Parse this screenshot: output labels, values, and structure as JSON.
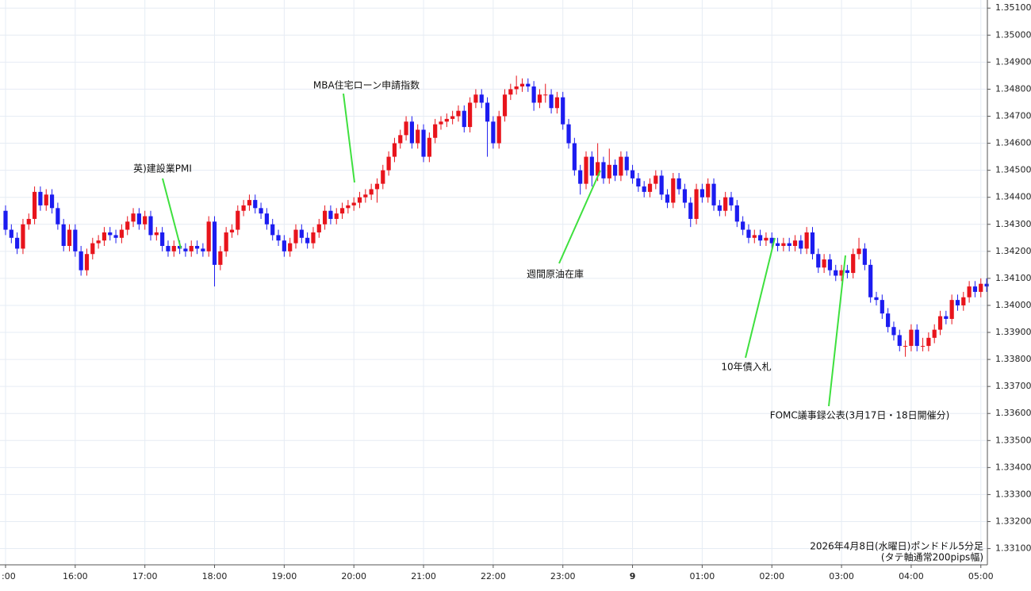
{
  "chart_data": {
    "type": "candlestick",
    "categories": [
      ":00",
      null,
      null,
      null,
      null,
      null,
      null,
      null,
      null,
      null,
      null,
      null,
      "16:00",
      null,
      null,
      null,
      null,
      null,
      null,
      null,
      null,
      null,
      null,
      null,
      "17:00",
      null,
      null,
      null,
      null,
      null,
      null,
      null,
      null,
      null,
      null,
      null,
      "18:00",
      null,
      null,
      null,
      null,
      null,
      null,
      null,
      null,
      null,
      null,
      null,
      "19:00",
      null,
      null,
      null,
      null,
      null,
      null,
      null,
      null,
      null,
      null,
      null,
      "20:00",
      null,
      null,
      null,
      null,
      null,
      null,
      null,
      null,
      null,
      null,
      null,
      "21:00",
      null,
      null,
      null,
      null,
      null,
      null,
      null,
      null,
      null,
      null,
      null,
      "22:00",
      null,
      null,
      null,
      null,
      null,
      null,
      null,
      null,
      null,
      null,
      null,
      "23:00",
      null,
      null,
      null,
      null,
      null,
      null,
      null,
      null,
      null,
      null,
      null,
      "9",
      null,
      null,
      null,
      null,
      null,
      null,
      null,
      null,
      null,
      null,
      null,
      "01:00",
      null,
      null,
      null,
      null,
      null,
      null,
      null,
      null,
      null,
      null,
      null,
      "02:00",
      null,
      null,
      null,
      null,
      null,
      null,
      null,
      null,
      null,
      null,
      null,
      "03:00",
      null,
      null,
      null,
      null,
      null,
      null,
      null,
      null,
      null,
      null,
      null,
      "04:00",
      null,
      null,
      null,
      null,
      null,
      null,
      null,
      null,
      null,
      null,
      null,
      "05:00",
      null
    ],
    "open": [
      1.3435,
      1.3428,
      1.3425,
      1.3421,
      1.343,
      1.3432,
      1.3442,
      1.3437,
      1.3441,
      1.3436,
      1.343,
      1.3422,
      1.3428,
      1.342,
      1.3413,
      1.3419,
      1.3423,
      1.3424,
      1.3427,
      1.3426,
      1.3425,
      1.3428,
      1.3431,
      1.3434,
      1.343,
      1.3433,
      1.3426,
      1.3427,
      1.3422,
      1.342,
      1.3422,
      1.3421,
      1.342,
      1.3422,
      1.3421,
      1.342,
      1.3431,
      1.3415,
      1.342,
      1.3427,
      1.3428,
      1.3435,
      1.3437,
      1.3439,
      1.3436,
      1.3434,
      1.343,
      1.3426,
      1.3424,
      1.342,
      1.3423,
      1.3428,
      1.3425,
      1.3423,
      1.3427,
      1.343,
      1.3435,
      1.3432,
      1.3434,
      1.3436,
      1.3437,
      1.3438,
      1.344,
      1.3441,
      1.3443,
      1.3445,
      1.345,
      1.3455,
      1.346,
      1.3463,
      1.3468,
      1.346,
      1.3465,
      1.3455,
      1.3462,
      1.3467,
      1.3468,
      1.3469,
      1.347,
      1.3472,
      1.3466,
      1.3475,
      1.3478,
      1.3475,
      1.3468,
      1.346,
      1.347,
      1.3478,
      1.348,
      1.3481,
      1.3482,
      1.3481,
      1.3475,
      1.3478,
      1.3478,
      1.3473,
      1.3477,
      1.3467,
      1.346,
      1.345,
      1.3445,
      1.3455,
      1.3448,
      1.3453,
      1.3447,
      1.3452,
      1.3448,
      1.3455,
      1.345,
      1.3447,
      1.3444,
      1.3442,
      1.3445,
      1.3448,
      1.3441,
      1.3438,
      1.3447,
      1.3443,
      1.3438,
      1.3432,
      1.3443,
      1.344,
      1.3445,
      1.3437,
      1.3435,
      1.344,
      1.3437,
      1.3431,
      1.3428,
      1.3425,
      1.3426,
      1.3424,
      1.3425,
      1.3423,
      1.3422,
      1.3423,
      1.3422,
      1.3424,
      1.3421,
      1.3427,
      1.3419,
      1.3414,
      1.3417,
      1.3413,
      1.3411,
      1.3413,
      1.3412,
      1.3419,
      1.3421,
      1.3415,
      1.3403,
      1.3402,
      1.3397,
      1.3392,
      1.3389,
      1.3385,
      1.3385,
      1.3391,
      1.3385,
      1.3385,
      1.3388,
      1.3391,
      1.3396,
      1.3395,
      1.3402,
      1.34,
      1.3403,
      1.3407,
      1.3405,
      1.3408
    ],
    "high": [
      1.3437,
      1.343,
      1.3427,
      1.3432,
      1.3434,
      1.3444,
      1.3444,
      1.3443,
      1.3443,
      1.3438,
      1.3432,
      1.343,
      1.343,
      1.3422,
      1.3421,
      1.3425,
      1.3426,
      1.3429,
      1.3429,
      1.3428,
      1.343,
      1.3433,
      1.3436,
      1.3436,
      1.3435,
      1.3435,
      1.3429,
      1.3429,
      1.3424,
      1.3424,
      1.3424,
      1.3423,
      1.3424,
      1.3424,
      1.3423,
      1.3433,
      1.3433,
      1.3422,
      1.3429,
      1.343,
      1.3437,
      1.3439,
      1.3441,
      1.3441,
      1.3438,
      1.3436,
      1.3432,
      1.3428,
      1.3426,
      1.3425,
      1.343,
      1.343,
      1.3427,
      1.3429,
      1.3432,
      1.3437,
      1.3437,
      1.3436,
      1.3438,
      1.3439,
      1.344,
      1.3442,
      1.3443,
      1.3445,
      1.3447,
      1.3452,
      1.3457,
      1.3462,
      1.3465,
      1.347,
      1.347,
      1.3467,
      1.3467,
      1.3464,
      1.3469,
      1.347,
      1.3471,
      1.3472,
      1.3474,
      1.3474,
      1.3477,
      1.348,
      1.348,
      1.3477,
      1.347,
      1.3472,
      1.348,
      1.3482,
      1.3485,
      1.3484,
      1.3484,
      1.3483,
      1.348,
      1.3482,
      1.348,
      1.3479,
      1.3479,
      1.3469,
      1.3462,
      1.3452,
      1.3457,
      1.3457,
      1.346,
      1.3455,
      1.3458,
      1.3454,
      1.3457,
      1.3457,
      1.3452,
      1.3449,
      1.3446,
      1.3447,
      1.345,
      1.345,
      1.3443,
      1.3449,
      1.3449,
      1.3445,
      1.344,
      1.3445,
      1.3445,
      1.3447,
      1.3447,
      1.3439,
      1.3442,
      1.3442,
      1.3439,
      1.3433,
      1.343,
      1.3428,
      1.3428,
      1.3427,
      1.3427,
      1.3425,
      1.3425,
      1.3425,
      1.3426,
      1.3426,
      1.3429,
      1.3429,
      1.3421,
      1.3419,
      1.3419,
      1.3415,
      1.3415,
      1.3415,
      1.3421,
      1.3425,
      1.3423,
      1.3417,
      1.3405,
      1.3404,
      1.3399,
      1.3394,
      1.3391,
      1.3387,
      1.3393,
      1.3393,
      1.3388,
      1.339,
      1.3393,
      1.3398,
      1.3398,
      1.3404,
      1.3404,
      1.3405,
      1.3409,
      1.3409,
      1.341,
      1.341
    ],
    "low": [
      1.3426,
      1.3423,
      1.3419,
      1.3419,
      1.3428,
      1.343,
      1.3435,
      1.3435,
      1.3434,
      1.3428,
      1.342,
      1.342,
      1.3418,
      1.3411,
      1.3411,
      1.3417,
      1.3421,
      1.3422,
      1.3424,
      1.3423,
      1.3423,
      1.3426,
      1.3429,
      1.3428,
      1.3428,
      1.3424,
      1.3424,
      1.342,
      1.3418,
      1.3418,
      1.3419,
      1.3418,
      1.3418,
      1.3419,
      1.3418,
      1.3418,
      1.3407,
      1.3413,
      1.3418,
      1.3425,
      1.3426,
      1.3433,
      1.3435,
      1.3434,
      1.3432,
      1.3428,
      1.3424,
      1.3422,
      1.3418,
      1.3418,
      1.3421,
      1.3423,
      1.3421,
      1.3421,
      1.3425,
      1.3428,
      1.343,
      1.343,
      1.3432,
      1.3434,
      1.3435,
      1.3436,
      1.3438,
      1.3439,
      1.3438,
      1.3443,
      1.3448,
      1.3453,
      1.3458,
      1.3461,
      1.3458,
      1.3458,
      1.3453,
      1.3453,
      1.346,
      1.3465,
      1.3466,
      1.3467,
      1.3468,
      1.3464,
      1.3464,
      1.3473,
      1.3473,
      1.3455,
      1.3458,
      1.3458,
      1.3468,
      1.3476,
      1.3478,
      1.3479,
      1.3479,
      1.3472,
      1.3473,
      1.3475,
      1.3471,
      1.3471,
      1.3465,
      1.3458,
      1.3448,
      1.3441,
      1.3443,
      1.3444,
      1.3446,
      1.3445,
      1.3445,
      1.3446,
      1.3446,
      1.3448,
      1.3445,
      1.3442,
      1.344,
      1.344,
      1.3443,
      1.3439,
      1.3436,
      1.3436,
      1.3441,
      1.3436,
      1.3429,
      1.343,
      1.3438,
      1.3438,
      1.3435,
      1.3433,
      1.3433,
      1.3435,
      1.3429,
      1.3426,
      1.3423,
      1.3423,
      1.3422,
      1.3422,
      1.3421,
      1.342,
      1.342,
      1.342,
      1.342,
      1.3419,
      1.3419,
      1.3417,
      1.3412,
      1.3412,
      1.3411,
      1.3409,
      1.3409,
      1.341,
      1.341,
      1.3417,
      1.3413,
      1.3401,
      1.34,
      1.3395,
      1.339,
      1.3387,
      1.3383,
      1.3381,
      1.3383,
      1.3383,
      1.3383,
      1.3383,
      1.3386,
      1.3389,
      1.3393,
      1.3393,
      1.3398,
      1.3398,
      1.3401,
      1.3403,
      1.3403,
      1.3405
    ],
    "close": [
      1.3428,
      1.3425,
      1.3421,
      1.343,
      1.3432,
      1.3442,
      1.3437,
      1.3441,
      1.3436,
      1.343,
      1.3422,
      1.3428,
      1.342,
      1.3413,
      1.3419,
      1.3423,
      1.3424,
      1.3427,
      1.3426,
      1.3425,
      1.3428,
      1.3431,
      1.3434,
      1.343,
      1.3433,
      1.3426,
      1.3427,
      1.3422,
      1.342,
      1.3422,
      1.3421,
      1.342,
      1.3422,
      1.3421,
      1.342,
      1.3431,
      1.3415,
      1.342,
      1.3427,
      1.3428,
      1.3435,
      1.3437,
      1.3439,
      1.3436,
      1.3434,
      1.343,
      1.3426,
      1.3424,
      1.342,
      1.3423,
      1.3428,
      1.3425,
      1.3423,
      1.3427,
      1.343,
      1.3435,
      1.3432,
      1.3434,
      1.3436,
      1.3437,
      1.3438,
      1.344,
      1.3441,
      1.3443,
      1.3445,
      1.345,
      1.3455,
      1.346,
      1.3463,
      1.3468,
      1.346,
      1.3465,
      1.3455,
      1.3462,
      1.3467,
      1.3468,
      1.3469,
      1.347,
      1.3472,
      1.3466,
      1.3475,
      1.3478,
      1.3475,
      1.3468,
      1.346,
      1.347,
      1.3478,
      1.348,
      1.3481,
      1.3482,
      1.3481,
      1.3475,
      1.3478,
      1.3478,
      1.3473,
      1.3477,
      1.3467,
      1.346,
      1.345,
      1.3445,
      1.3455,
      1.3448,
      1.3453,
      1.3447,
      1.3452,
      1.3448,
      1.3455,
      1.345,
      1.3447,
      1.3444,
      1.3442,
      1.3445,
      1.3448,
      1.3441,
      1.3438,
      1.3447,
      1.3443,
      1.3438,
      1.3432,
      1.3443,
      1.344,
      1.3445,
      1.3437,
      1.3435,
      1.344,
      1.3437,
      1.3431,
      1.3428,
      1.3425,
      1.3426,
      1.3424,
      1.3425,
      1.3423,
      1.3422,
      1.3423,
      1.3422,
      1.3424,
      1.3421,
      1.3427,
      1.3419,
      1.3414,
      1.3417,
      1.3413,
      1.3411,
      1.3413,
      1.3412,
      1.3419,
      1.3421,
      1.3415,
      1.3403,
      1.3402,
      1.3397,
      1.3392,
      1.3389,
      1.3385,
      1.3385,
      1.3391,
      1.3385,
      1.3385,
      1.3388,
      1.3391,
      1.3396,
      1.3395,
      1.3402,
      1.34,
      1.3403,
      1.3407,
      1.3405,
      1.3408,
      1.3407
    ],
    "up_color": "#e8141c",
    "down_color": "#1c1cf0",
    "ylim": [
      1.3304,
      1.3513
    ],
    "yticks": [
      {
        "value": 1.351,
        "label": "1.35100"
      },
      {
        "value": 1.35,
        "label": "1.35000"
      },
      {
        "value": 1.349,
        "label": "1.34900"
      },
      {
        "value": 1.348,
        "label": "1.34800"
      },
      {
        "value": 1.347,
        "label": "1.34700"
      },
      {
        "value": 1.346,
        "label": "1.34600"
      },
      {
        "value": 1.345,
        "label": "1.34500"
      },
      {
        "value": 1.344,
        "label": "1.34400"
      },
      {
        "value": 1.343,
        "label": "1.34300"
      },
      {
        "value": 1.342,
        "label": "1.34200"
      },
      {
        "value": 1.341,
        "label": "1.34100"
      },
      {
        "value": 1.34,
        "label": "1.34000"
      },
      {
        "value": 1.339,
        "label": "1.33900"
      },
      {
        "value": 1.338,
        "label": "1.33800"
      },
      {
        "value": 1.337,
        "label": "1.33700"
      },
      {
        "value": 1.336,
        "label": "1.33600"
      },
      {
        "value": 1.335,
        "label": "1.33500"
      },
      {
        "value": 1.334,
        "label": "1.33400"
      },
      {
        "value": 1.333,
        "label": "1.33300"
      },
      {
        "value": 1.332,
        "label": "1.33200"
      },
      {
        "value": 1.331,
        "label": "1.33100"
      }
    ],
    "grid": true,
    "annotations": [
      "英)建設業PMI",
      "MBA住宅ローン申請指数",
      "週間原油在庫",
      "10年債入札",
      "FOMC議事録公表(3月17日・18日開催分)"
    ],
    "caption": [
      "2026年4月8日(水曜日)ポンドドル5分足",
      "(タテ軸通常200pips幅)"
    ]
  }
}
